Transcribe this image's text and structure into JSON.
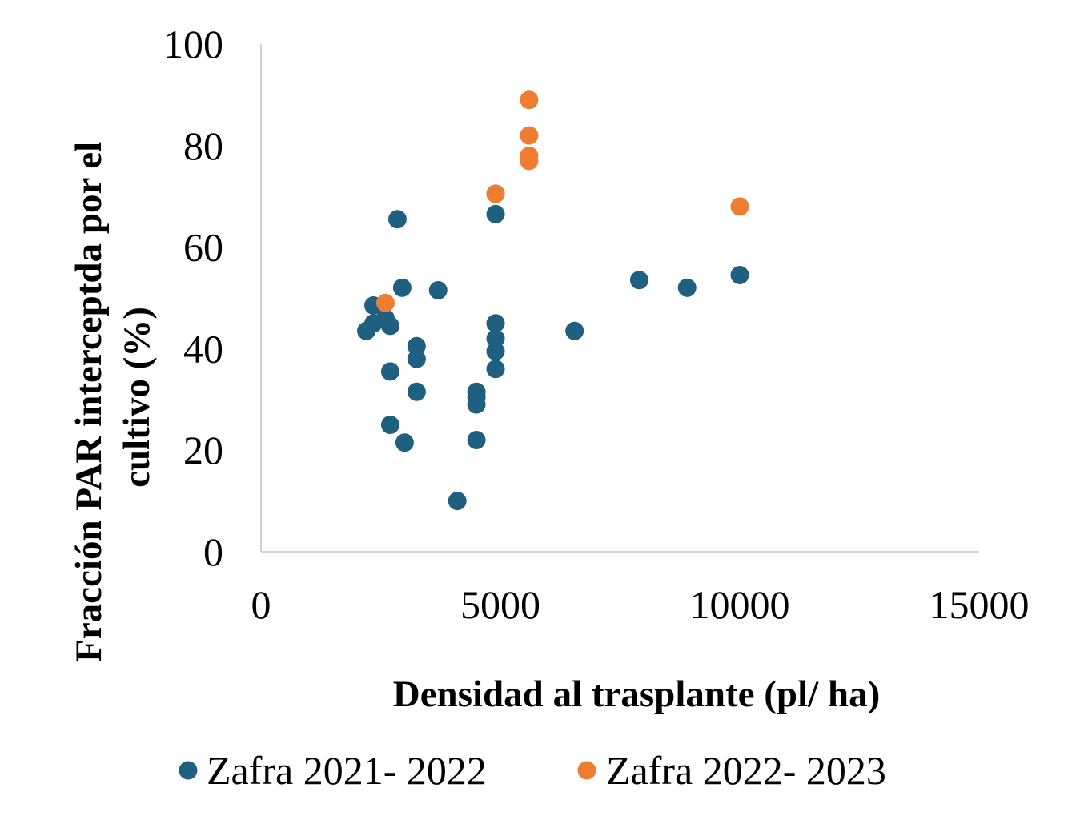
{
  "chart_data": {
    "type": "scatter",
    "xlabel": "Densidad al trasplante (pl/ ha)",
    "ylabel_lines": [
      "Fracción PAR interceptda por el",
      "cultivo (%)"
    ],
    "xlim": [
      0,
      15000
    ],
    "ylim": [
      0,
      100
    ],
    "xticks": [
      "0",
      "5000",
      "10000",
      "15000"
    ],
    "yticks": [
      "0",
      "20",
      "40",
      "60",
      "80",
      "100"
    ],
    "xtick_values": [
      0,
      5000,
      10000,
      15000
    ],
    "ytick_values": [
      0,
      20,
      40,
      60,
      80,
      100
    ],
    "grid": false,
    "legend_position": "bottom",
    "series": [
      {
        "name": "Zafra 2021- 2022",
        "color": "#1f5f7f",
        "points": [
          [
            2200,
            43.5
          ],
          [
            2350,
            48.5
          ],
          [
            2350,
            45
          ],
          [
            2600,
            46
          ],
          [
            2700,
            44.5
          ],
          [
            2700,
            35.5
          ],
          [
            2700,
            25
          ],
          [
            2850,
            65.5
          ],
          [
            2950,
            52
          ],
          [
            3000,
            21.5
          ],
          [
            3250,
            40.5
          ],
          [
            3250,
            38
          ],
          [
            3250,
            31.5
          ],
          [
            3700,
            51.5
          ],
          [
            4100,
            10
          ],
          [
            4500,
            31.5
          ],
          [
            4500,
            30.5
          ],
          [
            4500,
            29
          ],
          [
            4500,
            22
          ],
          [
            4900,
            70.5
          ],
          [
            4900,
            66.5
          ],
          [
            4900,
            45
          ],
          [
            4900,
            42
          ],
          [
            4900,
            39.5
          ],
          [
            4900,
            36
          ],
          [
            6550,
            43.5
          ],
          [
            7900,
            53.5
          ],
          [
            8900,
            52
          ],
          [
            10000,
            54.5
          ]
        ]
      },
      {
        "name": "Zafra 2022- 2023",
        "color": "#ed7d31",
        "points": [
          [
            2600,
            49
          ],
          [
            4900,
            70.5
          ],
          [
            5600,
            89
          ],
          [
            5600,
            82
          ],
          [
            5600,
            78
          ],
          [
            5600,
            77
          ],
          [
            10000,
            68
          ]
        ]
      }
    ]
  }
}
